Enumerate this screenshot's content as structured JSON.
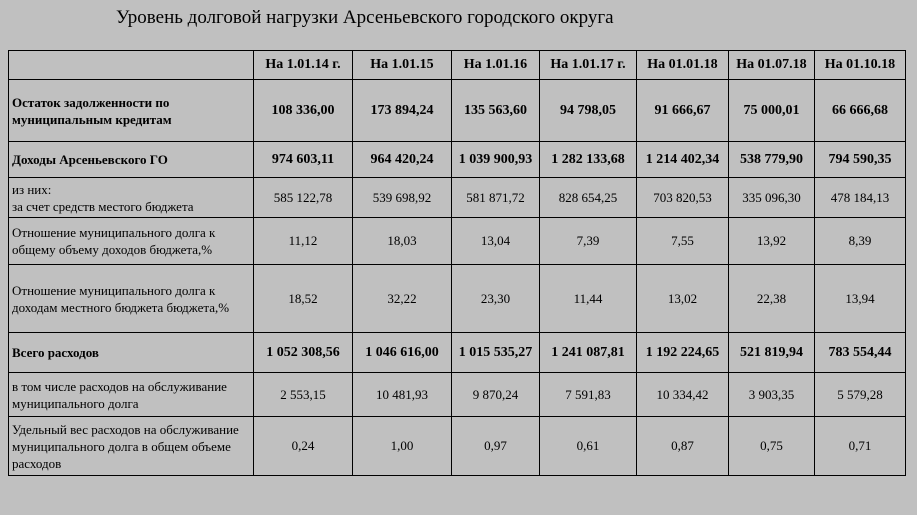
{
  "title": "Уровень долговой нагрузки Арсеньевского городского округа",
  "columns": [
    "На 1.01.14 г.",
    "На 1.01.15",
    "На 1.01.16",
    "На 1.01.17 г.",
    "На 01.01.18",
    "На 01.07.18",
    "На 01.10.18"
  ],
  "rows": [
    {
      "label": "Остаток задолженности по муниципальным кредитам",
      "bold": true,
      "values": [
        "108 336,00",
        "173 894,24",
        "135 563,60",
        "94 798,05",
        "91 666,67",
        "75 000,01",
        "66 666,68"
      ]
    },
    {
      "label": "Доходы Арсеньевского ГО",
      "bold": true,
      "values": [
        "974 603,11",
        "964 420,24",
        "1 039 900,93",
        "1 282 133,68",
        "1 214 402,34",
        "538 779,90",
        "794 590,35"
      ]
    },
    {
      "label": "из них: за счет средств местого бюджета",
      "label_lines": [
        "из них:",
        "за счет средств местого бюджета"
      ],
      "bold": false,
      "values": [
        "585 122,78",
        "539 698,92",
        "581 871,72",
        "828 654,25",
        "703 820,53",
        "335 096,30",
        "478 184,13"
      ]
    },
    {
      "label": "Отношение муниципального долга к общему объему доходов бюджета,%",
      "bold": false,
      "values": [
        "11,12",
        "18,03",
        "13,04",
        "7,39",
        "7,55",
        "13,92",
        "8,39"
      ]
    },
    {
      "label": "Отношение муниципального долга к доходам местного бюджета бюджета,%",
      "bold": false,
      "values": [
        "18,52",
        "32,22",
        "23,30",
        "11,44",
        "13,02",
        "22,38",
        "13,94"
      ]
    },
    {
      "label": "Всего расходов",
      "bold": true,
      "values": [
        "1 052 308,56",
        "1 046 616,00",
        "1 015 535,27",
        "1 241 087,81",
        "1 192 224,65",
        "521 819,94",
        "783 554,44"
      ]
    },
    {
      "label": "в том числе расходов на обслуживание муниципального долга",
      "bold": false,
      "values": [
        "2 553,15",
        "10 481,93",
        "9 870,24",
        "7 591,83",
        "10 334,42",
        "3 903,35",
        "5 579,28"
      ]
    },
    {
      "label": "Удельный вес расходов на обслуживание муниципального долга в общем объеме расходов",
      "bold": false,
      "values": [
        "0,24",
        "1,00",
        "0,97",
        "0,61",
        "0,87",
        "0,75",
        "0,71"
      ]
    }
  ]
}
